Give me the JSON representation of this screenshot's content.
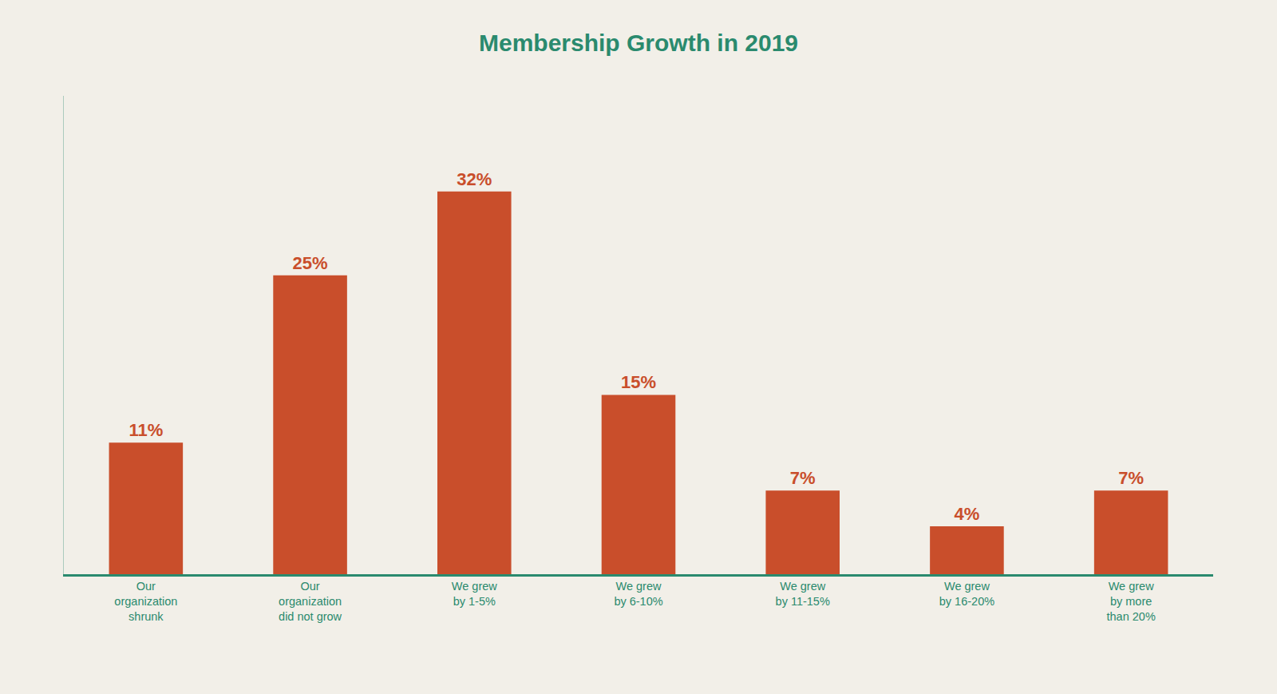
{
  "chart_data": {
    "type": "bar",
    "title": "Membership Growth in 2019",
    "categories": [
      "Our\norganization\nshrunk",
      "Our\norganization\ndid not grow",
      "We grew\nby 1-5%",
      "We grew\nby 6-10%",
      "We grew\nby 11-15%",
      "We grew\nby 16-20%",
      "We grew\nby more\nthan 20%"
    ],
    "values": [
      11,
      25,
      32,
      15,
      7,
      4,
      7
    ],
    "value_labels": [
      "11%",
      "25%",
      "32%",
      "15%",
      "7%",
      "4%",
      "7%"
    ],
    "color": "#c94e2b",
    "ylim": [
      0,
      40
    ],
    "data_labels": true,
    "tick_labels": "x",
    "grid": false
  }
}
